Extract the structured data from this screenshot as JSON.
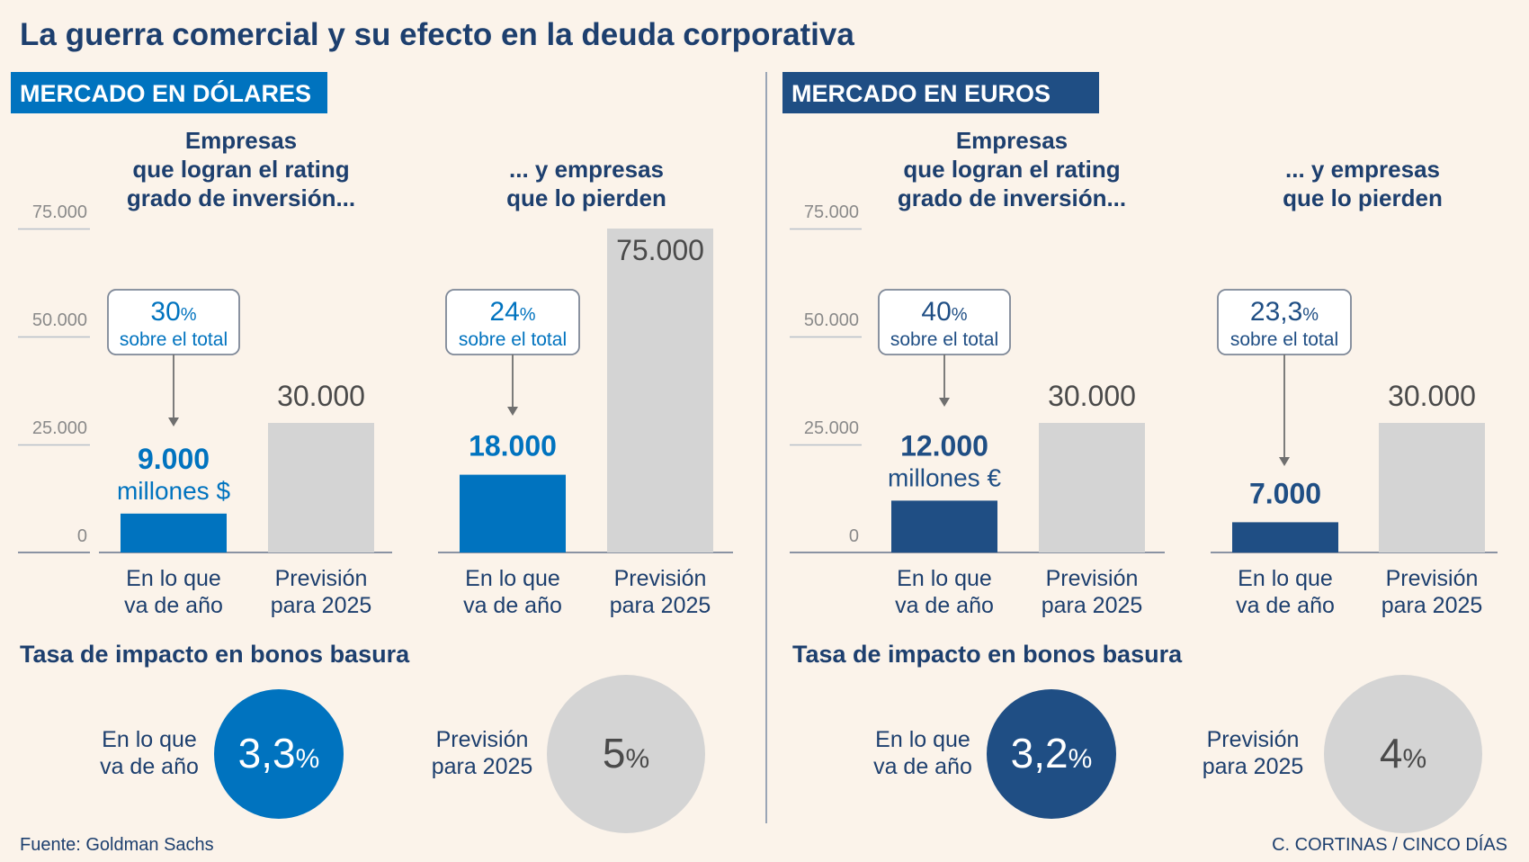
{
  "title": "La guerra comercial y su efecto en la deuda corporativa",
  "colors": {
    "background": "#fbf3ea",
    "title": "#1d3f6e",
    "usd_accent": "#0073bf",
    "eur_accent": "#1f4e84",
    "forecast_bar": "#d4d4d4",
    "muted_text": "#8a8a8a",
    "dark_text": "#4a4a4a"
  },
  "panels": [
    {
      "id": "usd",
      "header": "MERCADO EN DÓLARES",
      "accent": "#0073bf",
      "charts": [
        {
          "title_lines": [
            "Empresas",
            "que logran el rating",
            "grado de inversión..."
          ],
          "show_axis": true
        },
        {
          "title_lines": [
            "... y empresas",
            "que lo pierden"
          ],
          "show_axis": false
        }
      ],
      "impact": {
        "heading": "Tasa de impacto en bonos basura",
        "current_label_lines": [
          "En lo que",
          "va de año"
        ],
        "current_value": "3,3",
        "forecast_label_lines": [
          "Previsión",
          "para 2025"
        ],
        "forecast_value": "5",
        "unit": "%"
      }
    },
    {
      "id": "eur",
      "header": "MERCADO EN EUROS",
      "accent": "#1f4e84",
      "charts": [
        {
          "title_lines": [
            "Empresas",
            "que logran el rating",
            "grado de inversión..."
          ],
          "show_axis": true
        },
        {
          "title_lines": [
            "... y empresas",
            "que lo pierden"
          ],
          "show_axis": false
        }
      ],
      "impact": {
        "heading": "Tasa de impacto en bonos basura",
        "current_label_lines": [
          "En lo que",
          "va de año"
        ],
        "current_value": "3,2",
        "forecast_label_lines": [
          "Previsión",
          "para 2025"
        ],
        "forecast_value": "4",
        "unit": "%"
      }
    }
  ],
  "footer": {
    "source": "Fuente: Goldman Sachs",
    "credit": "C. CORTINAS / CINCO DÍAS"
  },
  "chart_data": [
    {
      "type": "bar",
      "panel": "MERCADO EN DÓLARES",
      "title": "Empresas que logran el rating grado de inversión...",
      "categories": [
        "En lo que va de año",
        "Previsión para 2025"
      ],
      "category_lines": [
        [
          "En lo que",
          "va de año"
        ],
        [
          "Previsión",
          "para 2025"
        ]
      ],
      "values": [
        9000,
        30000
      ],
      "value_labels": [
        "9.000",
        "30.000"
      ],
      "value_sublabel": "millones $",
      "callout": {
        "pct": "30",
        "unit": "%",
        "text": "sobre el total"
      },
      "ylim": [
        0,
        75000
      ],
      "yticks": [
        0,
        25000,
        50000,
        75000
      ],
      "ytick_labels": [
        "0",
        "25.000",
        "50.000",
        "75.000"
      ]
    },
    {
      "type": "bar",
      "panel": "MERCADO EN DÓLARES",
      "title": "... y empresas que lo pierden",
      "categories": [
        "En lo que va de año",
        "Previsión para 2025"
      ],
      "category_lines": [
        [
          "En lo que",
          "va de año"
        ],
        [
          "Previsión",
          "para 2025"
        ]
      ],
      "values": [
        18000,
        75000
      ],
      "value_labels": [
        "18.000",
        "75.000"
      ],
      "value_sublabel": "",
      "callout": {
        "pct": "24",
        "unit": "%",
        "text": "sobre el total"
      },
      "ylim": [
        0,
        75000
      ]
    },
    {
      "type": "bar",
      "panel": "MERCADO EN EUROS",
      "title": "Empresas que logran el rating grado de inversión...",
      "categories": [
        "En lo que va de año",
        "Previsión para 2025"
      ],
      "category_lines": [
        [
          "En lo que",
          "va de año"
        ],
        [
          "Previsión",
          "para 2025"
        ]
      ],
      "values": [
        12000,
        30000
      ],
      "value_labels": [
        "12.000",
        "30.000"
      ],
      "value_sublabel": "millones €",
      "callout": {
        "pct": "40",
        "unit": "%",
        "text": "sobre el total"
      },
      "ylim": [
        0,
        75000
      ],
      "yticks": [
        0,
        25000,
        50000,
        75000
      ],
      "ytick_labels": [
        "0",
        "25.000",
        "50.000",
        "75.000"
      ]
    },
    {
      "type": "bar",
      "panel": "MERCADO EN EUROS",
      "title": "... y empresas que lo pierden",
      "categories": [
        "En lo que va de año",
        "Previsión para 2025"
      ],
      "category_lines": [
        [
          "En lo que",
          "va de año"
        ],
        [
          "Previsión",
          "para 2025"
        ]
      ],
      "values": [
        7000,
        30000
      ],
      "value_labels": [
        "7.000",
        "30.000"
      ],
      "value_sublabel": "",
      "callout": {
        "pct": "23,3",
        "unit": "%",
        "text": "sobre el total"
      },
      "ylim": [
        0,
        75000
      ]
    }
  ]
}
